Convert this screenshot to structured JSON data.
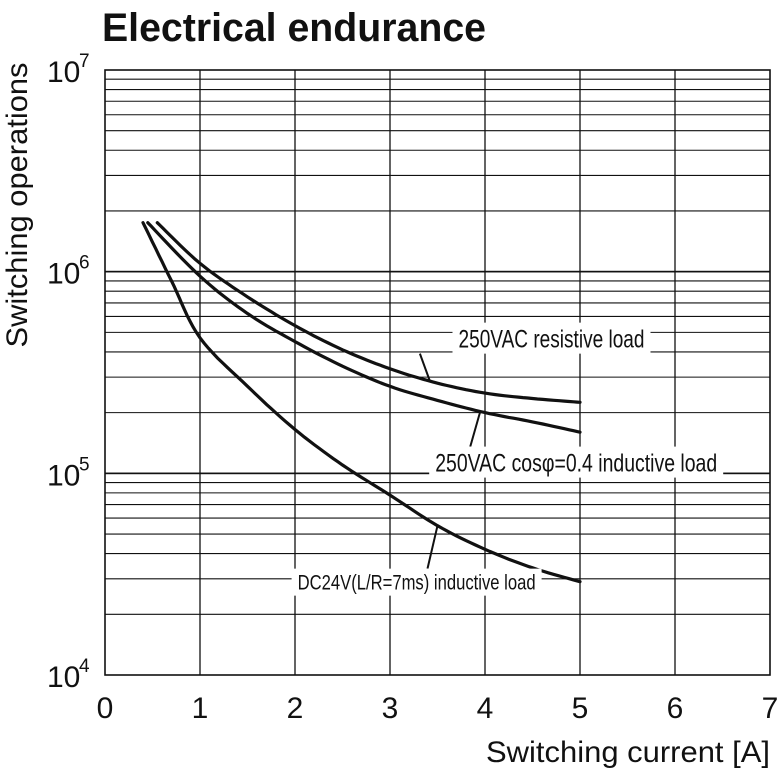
{
  "chart_data": {
    "type": "line",
    "title": "Electrical endurance",
    "xlabel": "Switching current [A]",
    "ylabel": "Switching operations",
    "x_scale": "linear",
    "y_scale": "log",
    "xlim": [
      0,
      7
    ],
    "ylim": [
      10000,
      10000000
    ],
    "grid": true,
    "x_ticks": [
      "0",
      "1",
      "2",
      "3",
      "4",
      "5",
      "6",
      "7"
    ],
    "y_ticks": [
      {
        "base": "10",
        "exp": "4",
        "value": 10000
      },
      {
        "base": "10",
        "exp": "5",
        "value": 100000
      },
      {
        "base": "10",
        "exp": "6",
        "value": 1000000
      },
      {
        "base": "10",
        "exp": "7",
        "value": 10000000
      }
    ],
    "series": [
      {
        "name": "250VAC resistive load",
        "points": [
          [
            0.55,
            1750000
          ],
          [
            1.0,
            1100000
          ],
          [
            1.5,
            750000
          ],
          [
            2.0,
            540000
          ],
          [
            2.5,
            410000
          ],
          [
            3.0,
            330000
          ],
          [
            3.5,
            280000
          ],
          [
            4.0,
            250000
          ],
          [
            4.5,
            235000
          ],
          [
            5.0,
            225000
          ]
        ]
      },
      {
        "name": "250VAC cosφ=0.4 inductive load",
        "points": [
          [
            0.45,
            1750000
          ],
          [
            1.0,
            950000
          ],
          [
            1.5,
            620000
          ],
          [
            2.0,
            450000
          ],
          [
            2.5,
            340000
          ],
          [
            3.0,
            270000
          ],
          [
            3.5,
            230000
          ],
          [
            4.0,
            200000
          ],
          [
            4.5,
            180000
          ],
          [
            5.0,
            160000
          ]
        ]
      },
      {
        "name": "DC24V(L/R=7ms) inductive load",
        "points": [
          [
            0.4,
            1750000
          ],
          [
            0.7,
            900000
          ],
          [
            1.0,
            470000
          ],
          [
            1.5,
            270000
          ],
          [
            2.0,
            165000
          ],
          [
            2.5,
            110000
          ],
          [
            3.0,
            78000
          ],
          [
            3.5,
            55000
          ],
          [
            4.0,
            42000
          ],
          [
            4.5,
            34000
          ],
          [
            5.0,
            29000
          ]
        ]
      }
    ],
    "annotations": [
      {
        "text": "250VAC resistive load",
        "series": 0
      },
      {
        "text": "250VAC cosφ=0.4 inductive load",
        "series": 1
      },
      {
        "text": "DC24V(L/R=7ms) inductive load",
        "series": 2
      }
    ]
  }
}
